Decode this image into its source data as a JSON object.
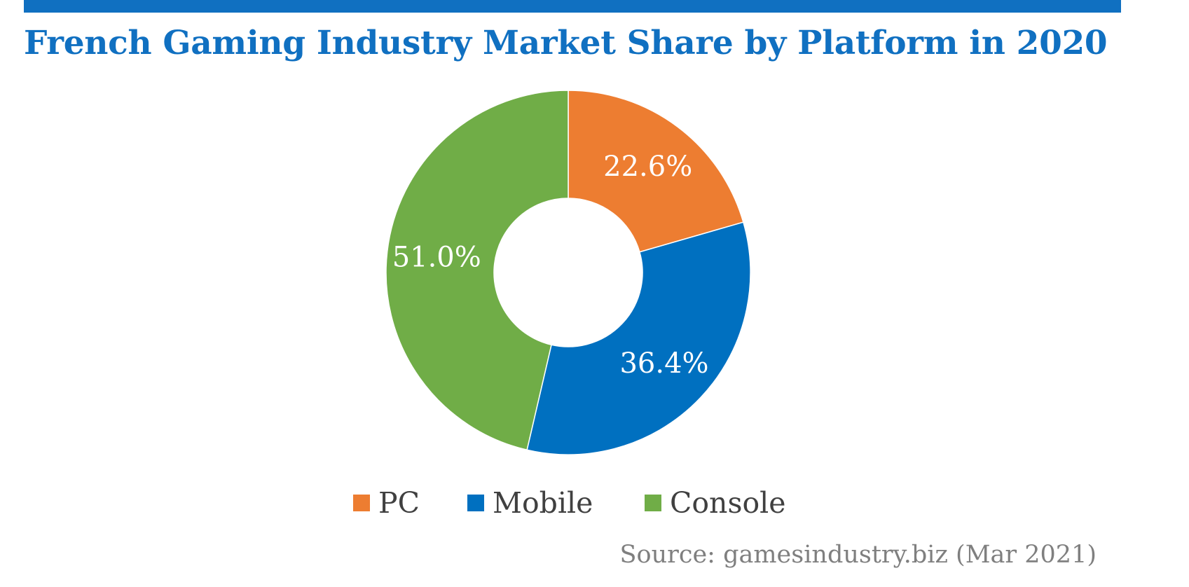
{
  "chart_data": {
    "type": "pie",
    "title": "French Gaming Industry Market Share by Platform in 2020",
    "categories": [
      "PC",
      "Mobile",
      "Console"
    ],
    "values": [
      22.6,
      36.4,
      51.0
    ],
    "data_labels": [
      "22.6%",
      "36.4%",
      "51.0%"
    ],
    "colors": [
      "#ED7D31",
      "#0070C0",
      "#70AD47"
    ],
    "donut": true,
    "legend_position": "bottom",
    "source": "Source: gamesindustry.biz (Mar 2021)"
  },
  "colors": {
    "accent_bar": "#1070C1",
    "title": "#1070C1",
    "legend_text": "#404040",
    "source_text": "#7F7F7F"
  }
}
